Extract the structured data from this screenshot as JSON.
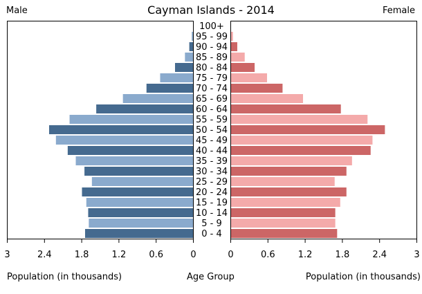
{
  "chart_data": {
    "type": "bar",
    "title": "Cayman Islands - 2014",
    "left_label": "Male",
    "right_label": "Female",
    "xlabel_left": "Population (in thousands)",
    "xlabel_center": "Age Group",
    "xlabel_right": "Population (in thousands)",
    "xlim": [
      0,
      3
    ],
    "ticks_left": [
      "3",
      "2.4",
      "1.8",
      "1.2",
      "0.6",
      "0"
    ],
    "ticks_right": [
      "0",
      "0.6",
      "1.2",
      "1.8",
      "2.4",
      "3"
    ],
    "categories": [
      "0 - 4",
      "5 - 9",
      "10 - 14",
      "15 - 19",
      "20 - 24",
      "25 - 29",
      "30 - 34",
      "35 - 39",
      "40 - 44",
      "45 - 49",
      "50 - 54",
      "55 - 59",
      "60 - 64",
      "65 - 69",
      "70 - 74",
      "75 - 79",
      "80 - 84",
      "85 - 89",
      "90 - 94",
      "95 - 99",
      "100+"
    ],
    "series": [
      {
        "name": "Male",
        "colors": [
          "#456a8f",
          "#8aaacd"
        ],
        "values": [
          1.74,
          1.68,
          1.69,
          1.72,
          1.79,
          1.63,
          1.75,
          1.89,
          2.02,
          2.21,
          2.32,
          1.99,
          1.56,
          1.13,
          0.75,
          0.53,
          0.29,
          0.13,
          0.06,
          0.02,
          0.0
        ]
      },
      {
        "name": "Female",
        "colors": [
          "#cc6666",
          "#f4aaaa"
        ],
        "values": [
          1.71,
          1.68,
          1.68,
          1.76,
          1.86,
          1.67,
          1.86,
          1.95,
          2.25,
          2.28,
          2.48,
          2.2,
          1.77,
          1.16,
          0.83,
          0.58,
          0.38,
          0.22,
          0.1,
          0.03,
          0.0
        ]
      }
    ],
    "grid": false
  }
}
